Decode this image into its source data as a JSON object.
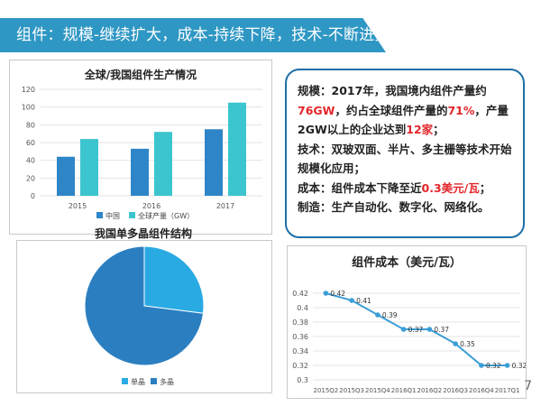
{
  "header": {
    "title": "组件：规模-继续扩大，成本-持续下降，技术-不断进步"
  },
  "text_panel": {
    "scale_part1": "规模：2017年，我国境内组件产量约",
    "scale_val1": "76GW",
    "scale_part2": "，约占全球组件产量的",
    "scale_val2": "71%",
    "scale_part3": "，产量2GW以上的企业达到",
    "scale_val3": "12家",
    "scale_part4": "；",
    "tech": "技术：双玻双面、半片、多主栅等技术开始规模化应用；",
    "cost_part1": "成本：组件成本下降至近",
    "cost_val": "0.3美元/瓦",
    "cost_part2": "；",
    "mfg": "制造：生产自动化、数字化、网络化。"
  },
  "page_number": "7",
  "chart_data": [
    {
      "type": "bar",
      "title": "全球/我国组件生产情况",
      "categories": [
        "2015",
        "2016",
        "2017"
      ],
      "series": [
        {
          "name": "中国",
          "values": [
            44,
            53,
            75
          ],
          "color": "#2e86c8"
        },
        {
          "name": "全球产量（GW）",
          "values": [
            64,
            72,
            105
          ],
          "color": "#3cc5cf"
        }
      ],
      "ylim": [
        0,
        120
      ],
      "yticks": [
        "0",
        "20",
        "40",
        "60",
        "80",
        "100",
        "120"
      ],
      "grid": true,
      "legend": "bottom"
    },
    {
      "type": "pie",
      "title": "我国单多晶组件结构",
      "slices": [
        {
          "name": "单晶",
          "value": 27,
          "color": "#2aaae3"
        },
        {
          "name": "多晶",
          "value": 73,
          "color": "#2b7fc1"
        }
      ],
      "legend": "bottom"
    },
    {
      "type": "line",
      "title": "组件成本（美元/瓦）",
      "categories": [
        "2015Q2",
        "2015Q3",
        "2015Q4",
        "2016Q1",
        "2016Q2",
        "2016Q3",
        "2016Q4",
        "2017Q1"
      ],
      "values": [
        0.42,
        0.41,
        0.39,
        0.37,
        0.37,
        0.35,
        0.32,
        0.32
      ],
      "data_labels": [
        "0.42",
        "0.41",
        "0.39",
        "0.37",
        "0.37",
        "0.35",
        "0.32",
        "0.32"
      ],
      "ylim": [
        0.3,
        0.43
      ],
      "yticks": [
        "0.3",
        "0.32",
        "0.34",
        "0.36",
        "0.38",
        "0.4",
        "0.42"
      ],
      "grid": true,
      "color": "#3b9ed6"
    }
  ]
}
